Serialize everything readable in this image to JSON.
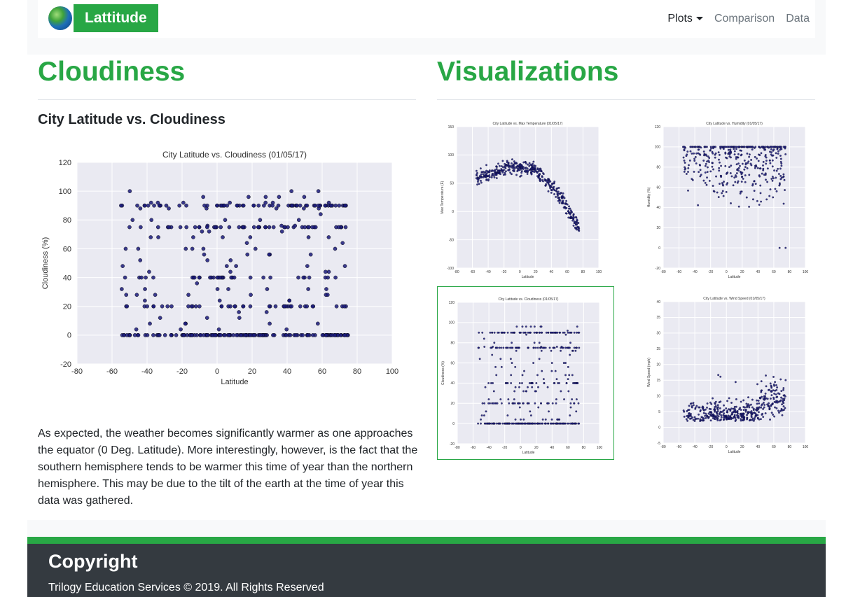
{
  "navbar": {
    "brand": "Lattitude",
    "links": [
      {
        "label": "Plots",
        "active": true,
        "dropdown": true
      },
      {
        "label": "Comparison"
      },
      {
        "label": "Data"
      }
    ]
  },
  "left": {
    "heading": "Cloudiness",
    "subheading": "City Latitude vs. Cloudiness",
    "paragraph": "As expected, the weather becomes significantly warmer as one approaches the equator (0 Deg. Latitude). More interestingly, however, is the fact that the southern hemisphere tends to be warmer this time of year than the northern hemisphere. This may be due to the tilt of the earth at the time of year this data was gathered."
  },
  "right": {
    "heading": "Visualizations"
  },
  "colors": {
    "accent": "#28a745",
    "plot_bg": "#eaeaf2",
    "point": "#1a1a7a",
    "footer_bg": "#343a40"
  },
  "chart_data": [
    {
      "id": "cloud-main",
      "type": "scatter",
      "title": "City Latitude vs. Cloudiness (01/05/17)",
      "xlabel": "Latitude",
      "ylabel": "Cloudiness (%)",
      "xlim": [
        -80,
        100
      ],
      "ylim": [
        -20,
        120
      ],
      "xticks": [
        -80,
        -60,
        -40,
        -20,
        0,
        20,
        40,
        60,
        80,
        100
      ],
      "yticks": [
        -20,
        0,
        20,
        40,
        60,
        80,
        100,
        120
      ],
      "grid": true,
      "pattern": "cloud"
    },
    {
      "id": "temp",
      "type": "scatter",
      "title": "City Latitude vs. Max Temperature (01/05/17)",
      "xlabel": "Latitude",
      "ylabel": "Max Temperature (F)",
      "xlim": [
        -80,
        100
      ],
      "ylim": [
        -100,
        150
      ],
      "xticks": [
        -80,
        -60,
        -40,
        -20,
        0,
        20,
        40,
        60,
        80,
        100
      ],
      "yticks": [
        -100,
        -50,
        0,
        50,
        100,
        150
      ],
      "grid": true,
      "pattern": "temp"
    },
    {
      "id": "humidity",
      "type": "scatter",
      "title": "City Latitude vs. Humidity (01/05/17)",
      "xlabel": "Latitude",
      "ylabel": "Humidity (%)",
      "xlim": [
        -80,
        100
      ],
      "ylim": [
        -20,
        120
      ],
      "xticks": [
        -80,
        -60,
        -40,
        -20,
        0,
        20,
        40,
        60,
        80,
        100
      ],
      "yticks": [
        -20,
        0,
        20,
        40,
        60,
        80,
        100,
        120
      ],
      "grid": true,
      "pattern": "humidity"
    },
    {
      "id": "cloud-thumb",
      "type": "scatter",
      "title": "City Latitude vs. Cloudiness (01/05/17)",
      "xlabel": "Latitude",
      "ylabel": "Cloudiness (%)",
      "xlim": [
        -80,
        100
      ],
      "ylim": [
        -20,
        120
      ],
      "xticks": [
        -80,
        -60,
        -40,
        -20,
        0,
        20,
        40,
        60,
        80,
        100
      ],
      "yticks": [
        -20,
        0,
        20,
        40,
        60,
        80,
        100,
        120
      ],
      "grid": true,
      "pattern": "cloud"
    },
    {
      "id": "wind",
      "type": "scatter",
      "title": "City Latitude vs. Wind Speed (01/05/17)",
      "xlabel": "Latitude",
      "ylabel": "Wind Speed (mph)",
      "xlim": [
        -80,
        100
      ],
      "ylim": [
        -5,
        40
      ],
      "xticks": [
        -80,
        -60,
        -40,
        -20,
        0,
        20,
        40,
        60,
        80,
        100
      ],
      "yticks": [
        -5,
        0,
        5,
        10,
        15,
        20,
        25,
        30,
        35,
        40
      ],
      "grid": true,
      "pattern": "wind"
    }
  ],
  "footer": {
    "title": "Copyright",
    "text": "Trilogy Education Services © 2019. All Rights Reserved"
  }
}
